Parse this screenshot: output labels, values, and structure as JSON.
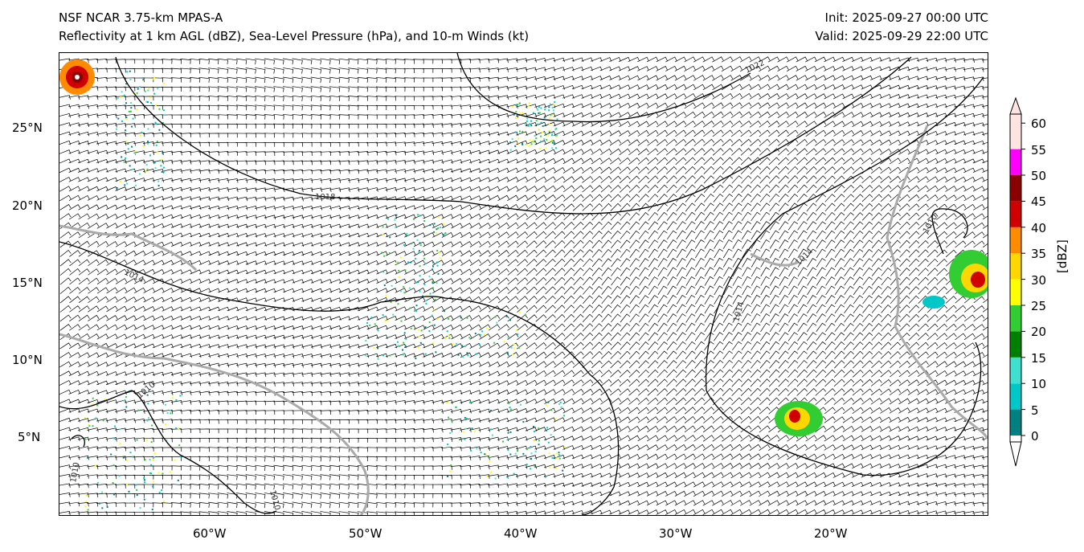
{
  "header": {
    "model": "NSF NCAR 3.75-km MPAS-A",
    "fields": "Reflectivity at 1 km AGL (dBZ), Sea-Level Pressure (hPa), and 10-m Winds (kt)",
    "init": "Init: 2025-09-27 00:00 UTC",
    "valid": "Valid: 2025-09-29 22:00 UTC"
  },
  "axes": {
    "lon_ticks": [
      "60°W",
      "50°W",
      "40°W",
      "30°W",
      "20°W"
    ],
    "lat_ticks": [
      "25°N",
      "20°N",
      "15°N",
      "10°N",
      "5°N"
    ],
    "lon_range": [
      -70,
      -10
    ],
    "lat_range": [
      0,
      30
    ]
  },
  "isobars": {
    "labels": [
      "1018",
      "1014",
      "1022",
      "1010",
      "1014",
      "1010",
      "1010",
      "1014",
      "1010"
    ]
  },
  "colorbar": {
    "label": "[dBZ]",
    "ticks": [
      "0",
      "5",
      "10",
      "15",
      "20",
      "25",
      "30",
      "35",
      "40",
      "45",
      "50",
      "55",
      "60"
    ],
    "colors": [
      "#008080",
      "#00c8c8",
      "#40e0d0",
      "#008000",
      "#32cd32",
      "#ffff00",
      "#ffd700",
      "#ff8c00",
      "#d00000",
      "#8b0000",
      "#ff00ff",
      "#ffe4e1"
    ]
  }
}
